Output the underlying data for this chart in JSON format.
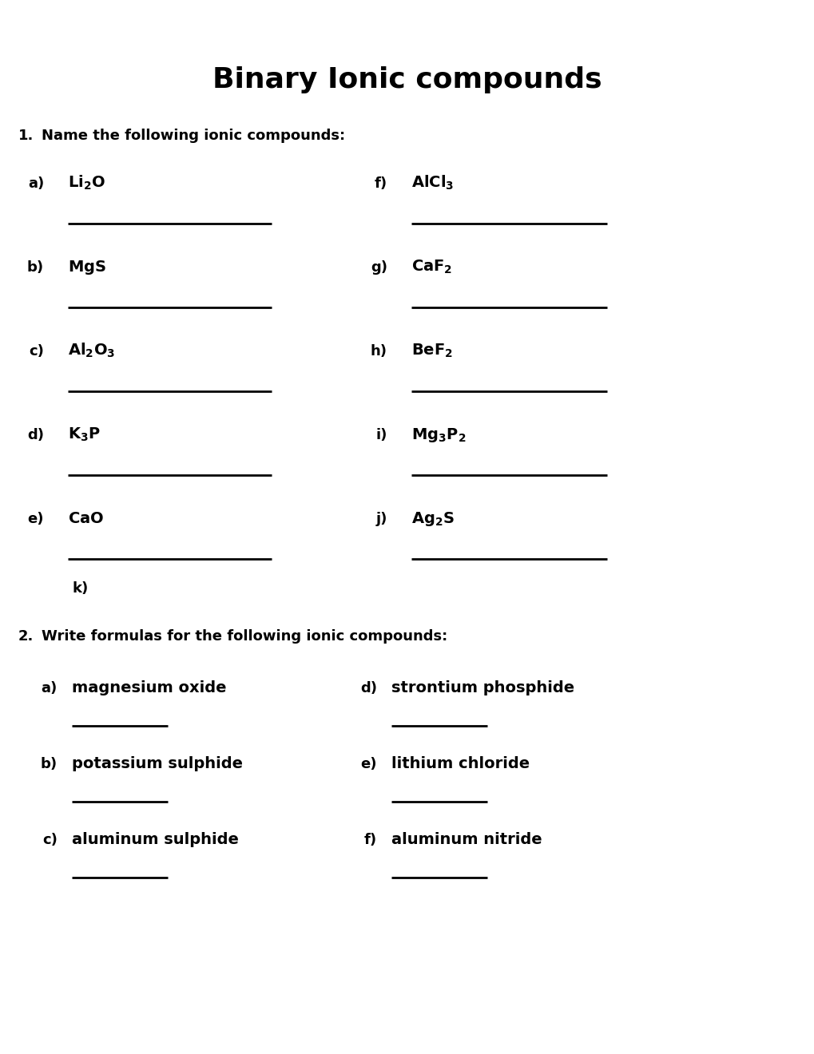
{
  "title": "Binary Ionic compounds",
  "background_color": "#ffffff",
  "text_color": "#000000",
  "title_fontsize": 26,
  "body_fontsize": 13,
  "formula_fontsize": 13,
  "label_fontsize": 12,
  "section1_header": "Name the following ionic compounds:",
  "section2_header": "Write formulas for the following ionic compounds:",
  "section1_number": "1.",
  "section2_number": "2.",
  "section1_items_left": [
    {
      "label": "a)",
      "formula": "$\\mathbf{Li_2O}$"
    },
    {
      "label": "b)",
      "formula": "$\\mathbf{MgS}$"
    },
    {
      "label": "c)",
      "formula": "$\\mathbf{Al_2O_3}$"
    },
    {
      "label": "d)",
      "formula": "$\\mathbf{K_3P}$"
    },
    {
      "label": "e)",
      "formula": "$\\mathbf{CaO}$"
    }
  ],
  "section1_items_right": [
    {
      "label": "f)",
      "formula": "$\\mathbf{AlCl_3}$"
    },
    {
      "label": "g)",
      "formula": "$\\mathbf{CaF_2}$"
    },
    {
      "label": "h)",
      "formula": "$\\mathbf{BeF_2}$"
    },
    {
      "label": "i)",
      "formula": "$\\mathbf{Mg_3P_2}$"
    },
    {
      "label": "j)",
      "formula": "$\\mathbf{Ag_2S}$"
    }
  ],
  "section2_items_left": [
    {
      "label": "a)",
      "text": "magnesium oxide"
    },
    {
      "label": "b)",
      "text": "potassium sulphide"
    },
    {
      "label": "c)",
      "text": "aluminum sulphide"
    }
  ],
  "section2_items_right": [
    {
      "label": "d)",
      "text": "strontium phosphide"
    },
    {
      "label": "e)",
      "text": "lithium chloride"
    },
    {
      "label": "f)",
      "text": "aluminum nitride"
    }
  ],
  "k_label": "k)"
}
